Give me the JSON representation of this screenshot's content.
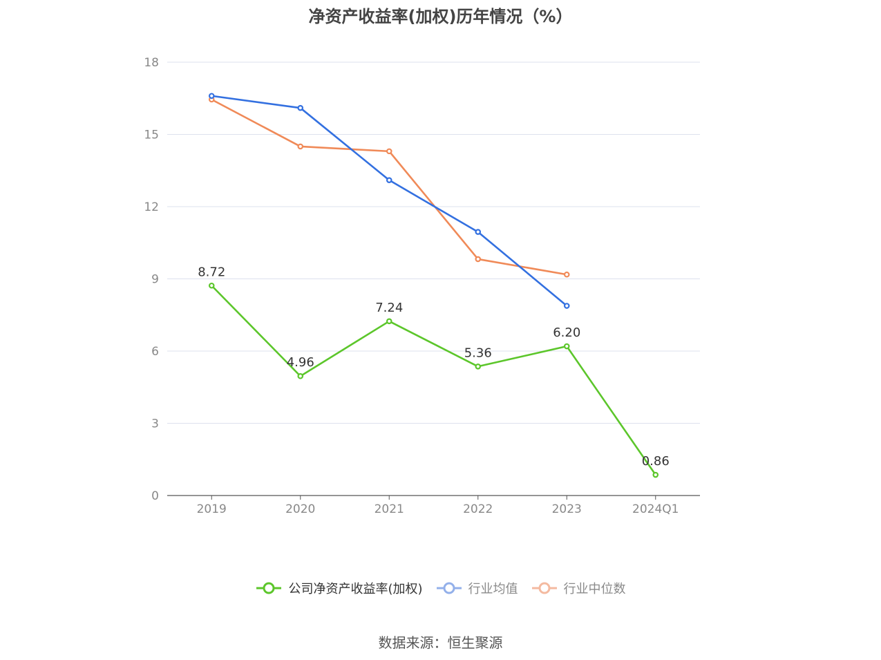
{
  "title": "净资产收益率(加权)历年情况（%）",
  "source_text": "数据来源：恒生聚源",
  "chart_data": {
    "type": "line",
    "title": "净资产收益率(加权)历年情况（%）",
    "xlabel": "",
    "ylabel": "",
    "categories": [
      "2019",
      "2020",
      "2021",
      "2022",
      "2023",
      "2024Q1"
    ],
    "y_ticks": [
      "0",
      "3",
      "6",
      "9",
      "12",
      "15",
      "18"
    ],
    "ylim": [
      0,
      18
    ],
    "grid": true,
    "legend_position": "bottom",
    "series": [
      {
        "name": "公司净资产收益率(加权)",
        "color": "#5cc62b",
        "values": [
          8.72,
          4.96,
          7.24,
          5.36,
          6.2,
          0.86
        ],
        "labels": [
          "8.72",
          "4.96",
          "7.24",
          "5.36",
          "6.20",
          "0.86"
        ],
        "show_labels": true
      },
      {
        "name": "行业均值",
        "color": "#3370e0",
        "legend_color": "#93b0ea",
        "values": [
          16.6,
          16.1,
          13.1,
          10.95,
          7.88,
          null
        ]
      },
      {
        "name": "行业中位数",
        "color": "#f08a58",
        "legend_color": "#f4baa0",
        "values": [
          16.45,
          14.5,
          14.3,
          9.82,
          9.18,
          null
        ]
      }
    ]
  }
}
